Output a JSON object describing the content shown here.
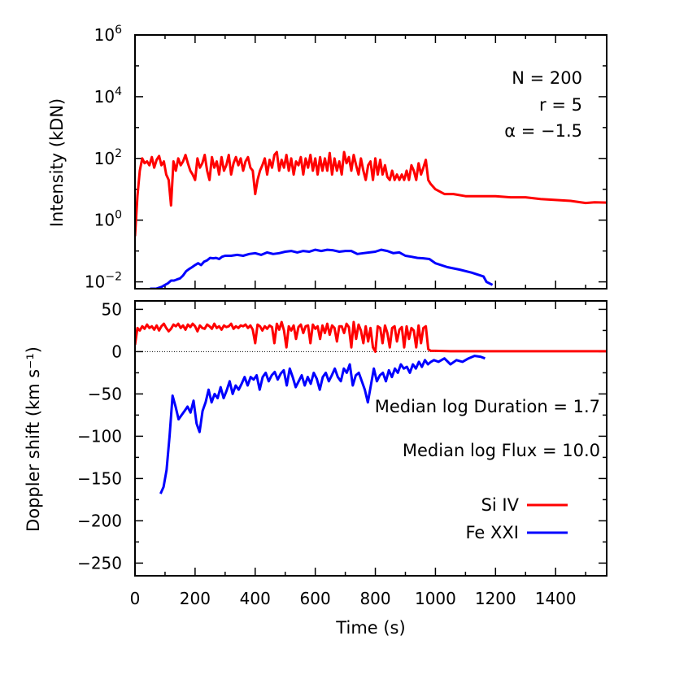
{
  "chart_data": [
    {
      "type": "line",
      "panel": "top",
      "ylabel": "Intensity (kDN)",
      "yscale": "log",
      "ylim": [
        0.006,
        1000000
      ],
      "xlim": [
        0,
        1570
      ],
      "yticks": [
        {
          "value": 0.01,
          "base": "10",
          "exp": "−2"
        },
        {
          "value": 1,
          "base": "10",
          "exp": "0"
        },
        {
          "value": 100,
          "base": "10",
          "exp": "2"
        },
        {
          "value": 10000,
          "base": "10",
          "exp": "4"
        },
        {
          "value": 1000000,
          "base": "10",
          "exp": "6"
        }
      ],
      "annotations": [
        "N = 200",
        "r = 5",
        "α = −1.5"
      ],
      "series": [
        {
          "name": "Si IV",
          "color": "#ff0000",
          "x": [
            0,
            8,
            16,
            24,
            32,
            40,
            48,
            56,
            64,
            72,
            80,
            88,
            96,
            104,
            112,
            120,
            128,
            136,
            144,
            152,
            160,
            168,
            176,
            184,
            192,
            200,
            208,
            216,
            224,
            232,
            240,
            248,
            256,
            264,
            272,
            280,
            288,
            296,
            304,
            312,
            320,
            328,
            336,
            344,
            352,
            360,
            368,
            376,
            384,
            392,
            400,
            408,
            416,
            424,
            432,
            440,
            448,
            456,
            464,
            472,
            480,
            488,
            496,
            504,
            512,
            520,
            528,
            536,
            544,
            552,
            560,
            568,
            576,
            584,
            592,
            600,
            608,
            616,
            624,
            632,
            640,
            648,
            656,
            664,
            672,
            680,
            688,
            696,
            704,
            712,
            720,
            728,
            736,
            744,
            752,
            760,
            768,
            776,
            784,
            792,
            800,
            808,
            816,
            824,
            832,
            840,
            848,
            856,
            864,
            872,
            880,
            888,
            896,
            904,
            912,
            920,
            928,
            936,
            944,
            952,
            960,
            968,
            976,
            984,
            1000,
            1030,
            1060,
            1100,
            1150,
            1200,
            1250,
            1300,
            1350,
            1400,
            1450,
            1500,
            1530,
            1570
          ],
          "y": [
            0.3,
            6,
            40,
            100,
            70,
            80,
            60,
            110,
            50,
            90,
            120,
            60,
            80,
            30,
            20,
            3,
            80,
            40,
            100,
            60,
            80,
            130,
            70,
            40,
            30,
            20,
            100,
            50,
            70,
            130,
            40,
            20,
            110,
            50,
            80,
            30,
            110,
            40,
            60,
            130,
            30,
            70,
            110,
            60,
            100,
            40,
            80,
            110,
            50,
            40,
            7,
            20,
            40,
            60,
            100,
            30,
            90,
            50,
            130,
            160,
            40,
            90,
            50,
            130,
            40,
            100,
            30,
            80,
            60,
            110,
            30,
            100,
            50,
            130,
            40,
            100,
            30,
            110,
            40,
            100,
            40,
            150,
            30,
            100,
            40,
            80,
            30,
            160,
            70,
            110,
            40,
            130,
            60,
            30,
            100,
            40,
            20,
            60,
            80,
            20,
            100,
            30,
            90,
            30,
            60,
            25,
            20,
            40,
            20,
            30,
            20,
            30,
            20,
            40,
            20,
            60,
            40,
            20,
            70,
            30,
            50,
            90,
            20,
            15,
            10,
            7,
            7,
            6,
            6,
            6,
            5.5,
            5.5,
            4.8,
            4.5,
            4.2,
            3.6,
            3.8,
            3.7
          ]
        },
        {
          "name": "Fe XXI",
          "color": "#0000ff",
          "x": [
            50,
            70,
            90,
            100,
            110,
            120,
            130,
            140,
            150,
            160,
            170,
            180,
            190,
            200,
            210,
            220,
            230,
            240,
            250,
            260,
            270,
            280,
            290,
            300,
            320,
            340,
            360,
            380,
            400,
            420,
            440,
            460,
            480,
            500,
            520,
            540,
            560,
            580,
            600,
            620,
            640,
            660,
            680,
            700,
            720,
            740,
            760,
            780,
            800,
            820,
            840,
            860,
            880,
            900,
            920,
            940,
            960,
            980,
            1000,
            1040,
            1080,
            1120,
            1160,
            1170,
            1190
          ],
          "y": [
            0.006,
            0.006,
            0.007,
            0.008,
            0.009,
            0.011,
            0.011,
            0.012,
            0.013,
            0.016,
            0.022,
            0.026,
            0.03,
            0.035,
            0.04,
            0.035,
            0.045,
            0.05,
            0.06,
            0.058,
            0.06,
            0.055,
            0.065,
            0.07,
            0.07,
            0.075,
            0.07,
            0.08,
            0.085,
            0.075,
            0.09,
            0.08,
            0.085,
            0.095,
            0.1,
            0.09,
            0.1,
            0.095,
            0.11,
            0.1,
            0.11,
            0.105,
            0.095,
            0.1,
            0.1,
            0.08,
            0.085,
            0.09,
            0.095,
            0.11,
            0.1,
            0.085,
            0.09,
            0.07,
            0.065,
            0.06,
            0.058,
            0.055,
            0.04,
            0.03,
            0.025,
            0.02,
            0.015,
            0.01,
            0.008
          ]
        }
      ]
    },
    {
      "type": "line",
      "panel": "bottom",
      "xlabel": "Time (s)",
      "ylabel": "Doppler shift (km s⁻¹)",
      "ylim": [
        -265,
        60
      ],
      "xlim": [
        0,
        1570
      ],
      "xticks": [
        0,
        200,
        400,
        600,
        800,
        1000,
        1200,
        1400
      ],
      "yticks": [
        50,
        0,
        -50,
        -100,
        -150,
        -200,
        -250
      ],
      "zero_line": "dotted",
      "annotations": [
        "Median log Duration = 1.7",
        "Median log Flux = 10.0"
      ],
      "legend": "lower-right",
      "series": [
        {
          "name": "Si IV",
          "color": "#ff0000",
          "x": [
            0,
            8,
            16,
            24,
            32,
            40,
            48,
            56,
            64,
            72,
            80,
            88,
            96,
            104,
            112,
            120,
            128,
            136,
            144,
            152,
            160,
            168,
            176,
            184,
            192,
            200,
            208,
            216,
            224,
            232,
            240,
            248,
            256,
            264,
            272,
            280,
            288,
            296,
            304,
            312,
            320,
            328,
            336,
            344,
            352,
            360,
            368,
            376,
            384,
            392,
            400,
            408,
            416,
            424,
            432,
            440,
            448,
            456,
            464,
            472,
            480,
            488,
            496,
            504,
            512,
            520,
            528,
            536,
            544,
            552,
            560,
            568,
            576,
            584,
            592,
            600,
            608,
            616,
            624,
            632,
            640,
            648,
            656,
            664,
            672,
            680,
            688,
            696,
            704,
            712,
            720,
            728,
            736,
            744,
            752,
            760,
            768,
            776,
            784,
            792,
            800,
            808,
            816,
            824,
            832,
            840,
            848,
            856,
            864,
            872,
            880,
            888,
            896,
            904,
            912,
            920,
            928,
            936,
            944,
            952,
            960,
            968,
            976,
            984,
            1000,
            1050,
            1100,
            1150,
            1200,
            1300,
            1400,
            1500,
            1570
          ],
          "y": [
            8,
            28,
            25,
            30,
            27,
            32,
            28,
            30,
            26,
            31,
            25,
            30,
            33,
            28,
            24,
            27,
            32,
            30,
            33,
            28,
            31,
            26,
            32,
            29,
            33,
            30,
            24,
            31,
            28,
            27,
            32,
            30,
            27,
            33,
            28,
            30,
            26,
            31,
            29,
            30,
            33,
            27,
            30,
            28,
            31,
            30,
            32,
            28,
            31,
            26,
            10,
            32,
            30,
            25,
            30,
            27,
            31,
            29,
            10,
            33,
            26,
            35,
            25,
            5,
            30,
            25,
            31,
            15,
            29,
            32,
            22,
            30,
            31,
            10,
            32,
            27,
            30,
            15,
            31,
            22,
            33,
            20,
            31,
            28,
            12,
            30,
            30,
            22,
            33,
            29,
            5,
            35,
            15,
            32,
            25,
            10,
            30,
            12,
            28,
            5,
            0,
            30,
            28,
            10,
            31,
            22,
            5,
            28,
            30,
            12,
            26,
            29,
            5,
            30,
            15,
            28,
            25,
            5,
            31,
            10,
            28,
            30,
            3,
            1,
            1,
            0.5,
            0.5,
            0.5,
            0.5,
            0.5,
            0.5,
            0.5,
            0.5
          ],
          "clip": true
        },
        {
          "name": "Fe XXI",
          "color": "#0000ff",
          "x": [
            85,
            95,
            105,
            115,
            125,
            135,
            145,
            155,
            165,
            175,
            185,
            195,
            205,
            215,
            225,
            235,
            245,
            255,
            265,
            275,
            285,
            295,
            305,
            315,
            325,
            335,
            345,
            355,
            365,
            375,
            385,
            395,
            405,
            415,
            425,
            435,
            445,
            455,
            465,
            475,
            485,
            495,
            505,
            515,
            525,
            535,
            545,
            555,
            565,
            575,
            585,
            595,
            605,
            615,
            625,
            635,
            645,
            655,
            665,
            675,
            685,
            695,
            705,
            715,
            725,
            735,
            745,
            755,
            765,
            775,
            785,
            795,
            805,
            815,
            825,
            835,
            845,
            855,
            865,
            875,
            885,
            895,
            905,
            915,
            925,
            935,
            945,
            955,
            965,
            975,
            985,
            995,
            1010,
            1030,
            1050,
            1070,
            1090,
            1110,
            1130,
            1150,
            1165
          ],
          "y": [
            -168,
            -160,
            -140,
            -100,
            -52,
            -65,
            -80,
            -75,
            -70,
            -65,
            -72,
            -58,
            -85,
            -95,
            -70,
            -60,
            -45,
            -60,
            -50,
            -55,
            -42,
            -55,
            -46,
            -35,
            -50,
            -40,
            -45,
            -38,
            -30,
            -40,
            -30,
            -33,
            -28,
            -45,
            -30,
            -25,
            -35,
            -28,
            -24,
            -33,
            -26,
            -22,
            -40,
            -20,
            -30,
            -42,
            -35,
            -28,
            -40,
            -30,
            -38,
            -25,
            -32,
            -45,
            -30,
            -25,
            -35,
            -28,
            -20,
            -30,
            -35,
            -20,
            -25,
            -15,
            -40,
            -28,
            -25,
            -35,
            -45,
            -60,
            -40,
            -20,
            -35,
            -28,
            -25,
            -35,
            -22,
            -30,
            -20,
            -25,
            -15,
            -20,
            -18,
            -25,
            -15,
            -20,
            -12,
            -18,
            -10,
            -15,
            -12,
            -10,
            -12,
            -8,
            -15,
            -10,
            -12,
            -8,
            -5,
            -6,
            -8
          ]
        }
      ]
    }
  ]
}
